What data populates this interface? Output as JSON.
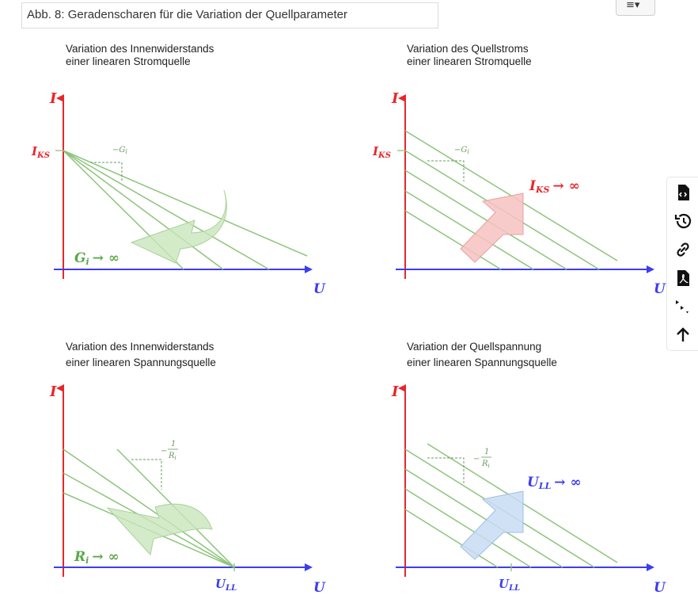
{
  "figure": {
    "caption": "Abb. 8: Geradenscharen für die Variation der Quellparameter",
    "panels": [
      {
        "title_line1": "Variation des Innenwiderstands",
        "title_line2": "einer linearen Stromquelle",
        "y_axis": "I",
        "x_axis": "U",
        "y_intercept_label": "I",
        "y_intercept_sub": "KS",
        "slope_label": "−G",
        "slope_sub": "i",
        "change_label": "G",
        "change_sub": "i",
        "change_arrow": "→ ∞"
      },
      {
        "title_line1": "Variation des Quellstroms",
        "title_line2": "einer linearen Stromquelle",
        "y_axis": "I",
        "x_axis": "U",
        "y_intercept_label": "I",
        "y_intercept_sub": "KS",
        "slope_label": "−G",
        "slope_sub": "i",
        "change_label": "I",
        "change_sub": "KS",
        "change_arrow": "→ ∞"
      },
      {
        "title_line1": "Variation des Innenwiderstands",
        "title_line2": "einer linearen Spannungsquelle",
        "y_axis": "I",
        "x_axis": "U",
        "x_intercept_label": "U",
        "x_intercept_sub": "LL",
        "slope_label": "−",
        "slope_num": "1",
        "slope_den": "R",
        "slope_den_sub": "i",
        "change_label": "R",
        "change_sub": "i",
        "change_arrow": "→ ∞"
      },
      {
        "title_line1": "Variation der Quellspannung",
        "title_line2": "einer linearen Spannungsquelle",
        "y_axis": "I",
        "x_axis": "U",
        "x_intercept_label": "U",
        "x_intercept_sub": "LL",
        "slope_label": "−",
        "slope_num": "1",
        "slope_den": "R",
        "slope_den_sub": "i",
        "change_label": "U",
        "change_sub": "LL",
        "change_arrow": "→ ∞"
      }
    ]
  },
  "toolbar": {
    "icons": [
      "code-file-icon",
      "history-icon",
      "link-icon",
      "pdf-icon",
      "more-options-icon",
      "scroll-top-icon"
    ]
  },
  "colors": {
    "axis_i": "#e8262a",
    "axis_u": "#3d3df0",
    "lines": "#8cc47a",
    "green_arrow": "#c9e6bc",
    "red_arrow": "#f7c2c2",
    "blue_arrow": "#c8dcf5"
  }
}
